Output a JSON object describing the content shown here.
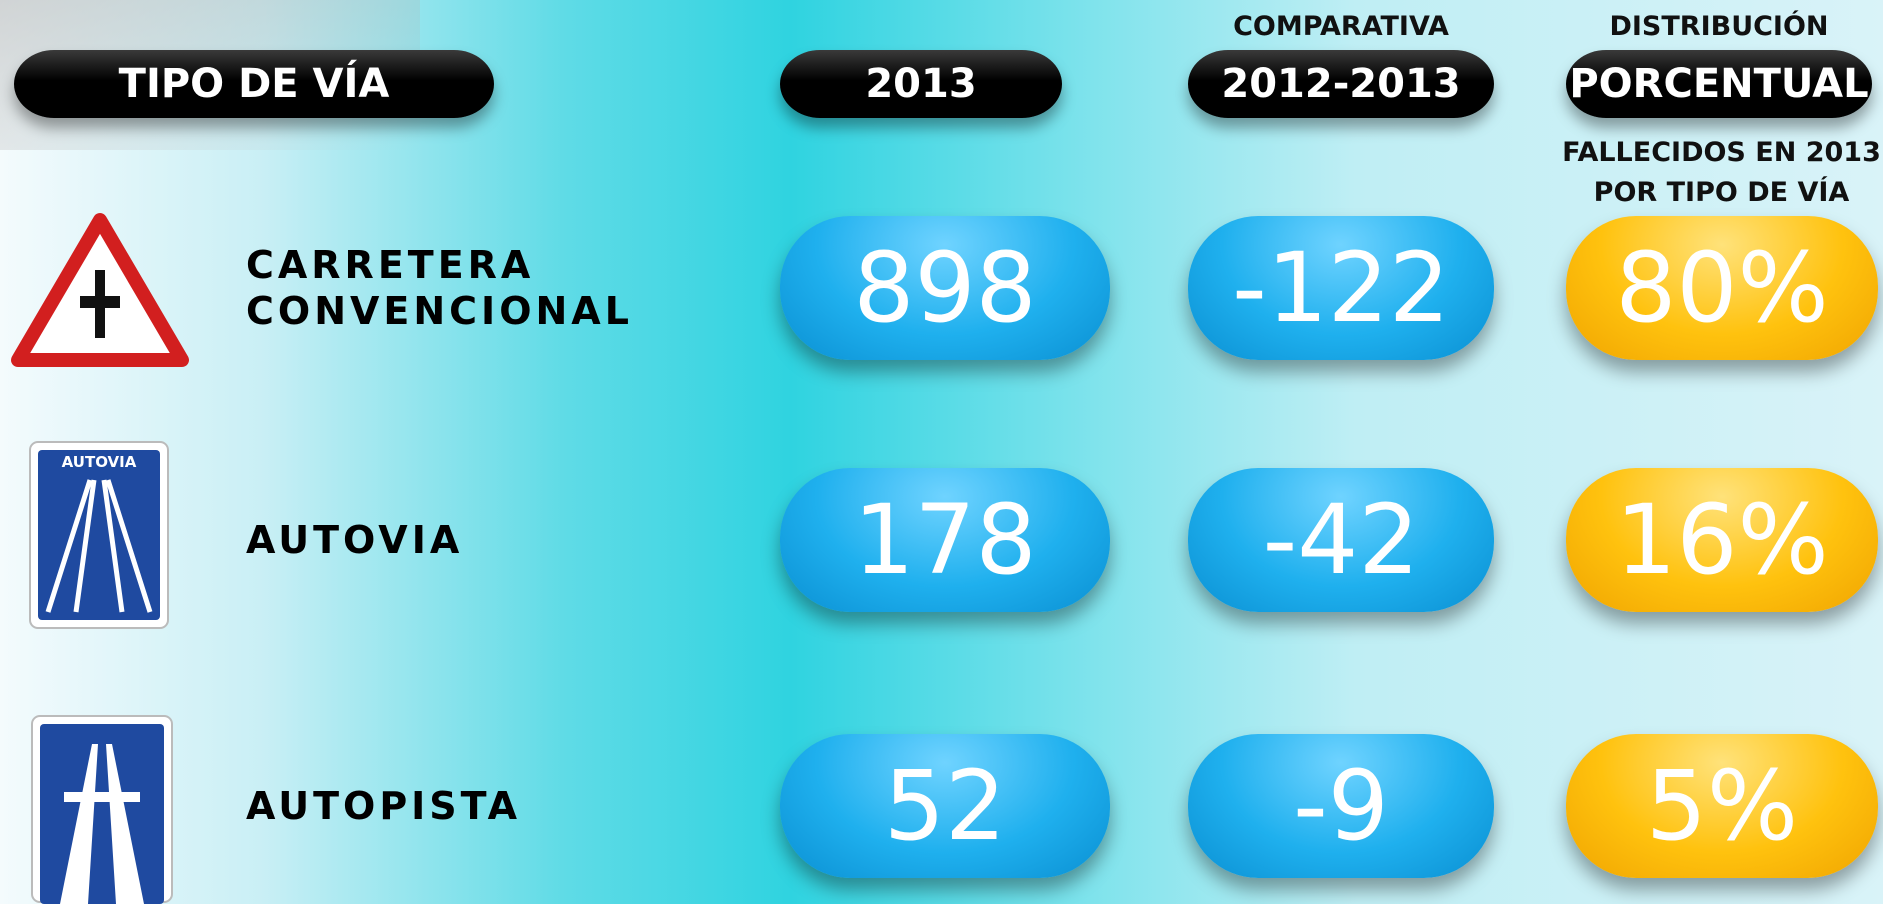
{
  "header": {
    "type": "TIPO DE VÍA",
    "year": "2013",
    "comparison_top": "COMPARATIVA",
    "comparison": "2012-2013",
    "distribution_top": "DISTRIBUCIÓN",
    "distribution": "PORCENTUAL",
    "note": [
      "FALLECIDOS EN 2013",
      "POR TIPO DE VÍA"
    ]
  },
  "rows": [
    {
      "label": [
        "CARRETERA",
        "CONVENCIONAL"
      ],
      "deaths_2013": "898",
      "change": "-122",
      "share": "80%"
    },
    {
      "label": [
        "AUTOVIA"
      ],
      "sign_text": "AUTOVIA",
      "deaths_2013": "178",
      "change": "-42",
      "share": "16%"
    },
    {
      "label": [
        "AUTOPISTA"
      ],
      "deaths_2013": "52",
      "change": "-9",
      "share": "5%"
    }
  ]
}
